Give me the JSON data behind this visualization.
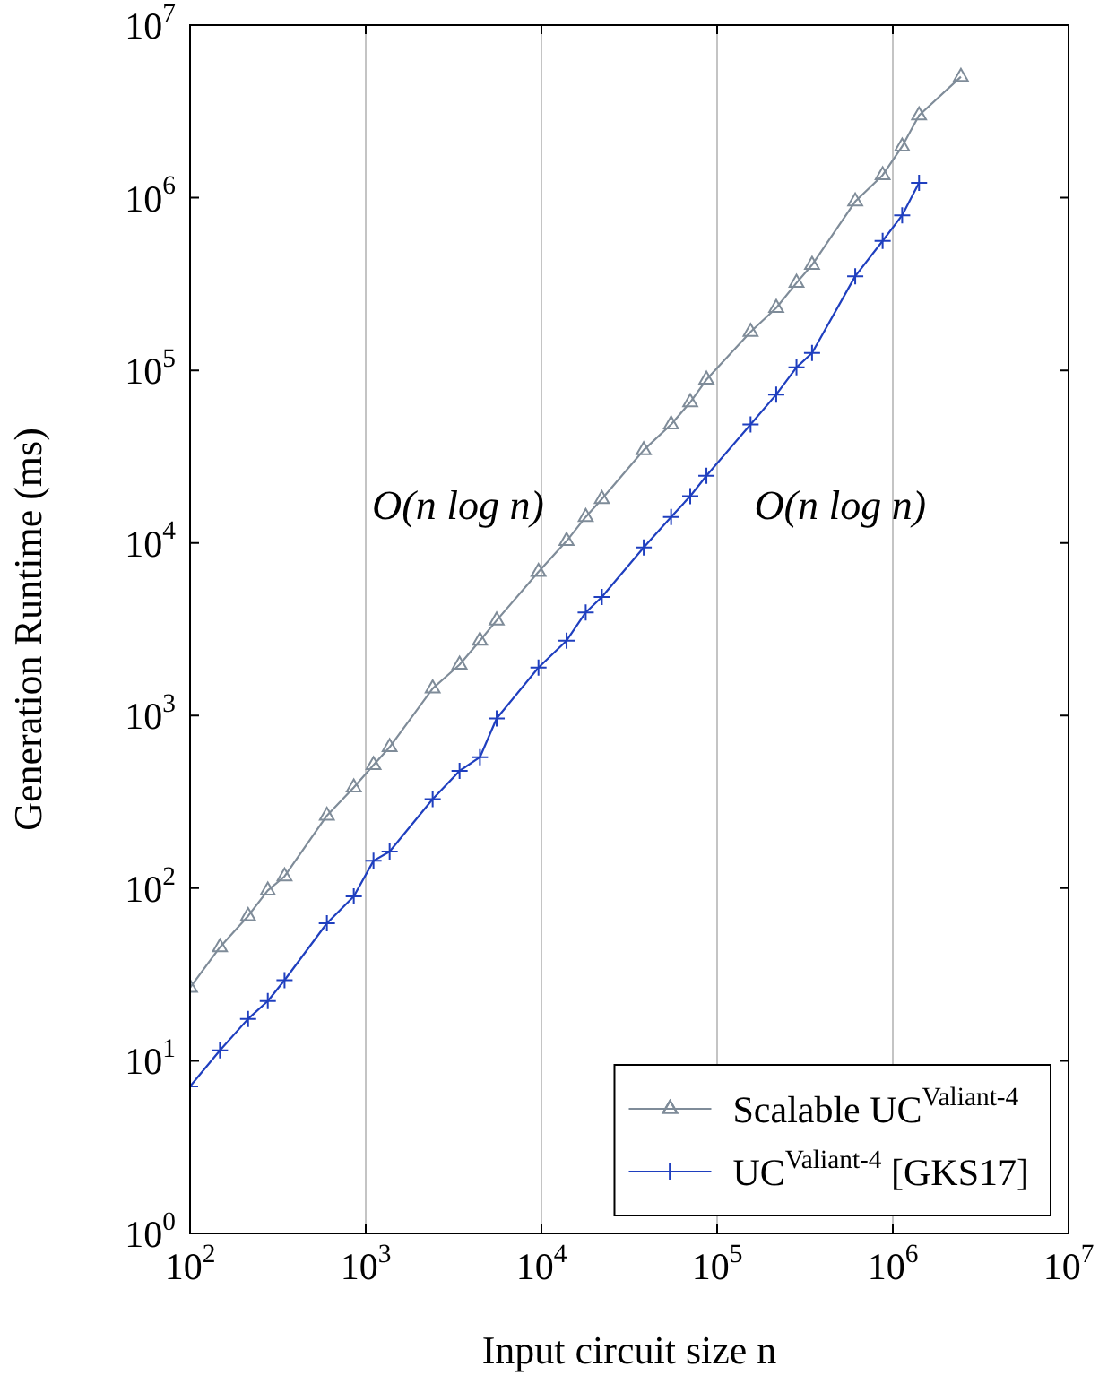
{
  "chart_data": {
    "type": "line",
    "xlabel": "Input circuit size n",
    "ylabel": "Generation Runtime (ms)",
    "log": "xy",
    "xlim": [
      100,
      10000000
    ],
    "ylim": [
      1,
      10000000
    ],
    "xticks": [
      {
        "value": 100,
        "label": "10$^{2}$"
      },
      {
        "value": 1000,
        "label": "10$^{3}$"
      },
      {
        "value": 10000,
        "label": "10$^{4}$"
      },
      {
        "value": 100000,
        "label": "10$^{5}$"
      },
      {
        "value": 1000000,
        "label": "10$^{6}$"
      },
      {
        "value": 10000000,
        "label": "10$^{7}$"
      }
    ],
    "yticks": [
      {
        "value": 1,
        "label": "10$^{0}$"
      },
      {
        "value": 10,
        "label": "10$^{1}$"
      },
      {
        "value": 100,
        "label": "10$^{2}$"
      },
      {
        "value": 1000,
        "label": "10$^{3}$"
      },
      {
        "value": 10000,
        "label": "10$^{4}$"
      },
      {
        "value": 100000,
        "label": "10$^{5}$"
      },
      {
        "value": 1000000,
        "label": "10$^{6}$"
      },
      {
        "value": 10000000,
        "label": "10$^{7}$"
      }
    ],
    "grid": "x",
    "legend": "bottom right",
    "line_style": "solid",
    "annotations": [
      "O(n log n)",
      "O(n log n)"
    ],
    "series": [
      {
        "name": "Scalable UC$^{Valiant-4}$",
        "color": "#7f8c99",
        "marker": "triangle",
        "x": [
          100,
          148,
          214,
          277,
          345,
          601,
          855,
          1107,
          1368,
          2404,
          3420,
          4467,
          5560,
          9620,
          13900,
          17870,
          22080,
          38200,
          54700,
          70300,
          86900,
          155000,
          217000,
          283000,
          347000,
          611000,
          875000,
          1130000,
          1410000,
          2440000
        ],
        "values": [
          26.5,
          45.5,
          69,
          97,
          117,
          263,
          383,
          517,
          656,
          1435,
          1972,
          2717,
          3557,
          6790,
          10260,
          14150,
          17950,
          34500,
          48600,
          65300,
          88300,
          167000,
          230000,
          321000,
          408000,
          951000,
          1350000,
          1980000,
          3000000,
          5020000
        ]
      },
      {
        "name": "UC$^{Valiant-4}$ [GKS17]",
        "color": "#1f3fbf",
        "marker": "cross",
        "x": [
          100,
          148,
          214,
          277,
          345,
          601,
          855,
          1107,
          1368,
          2404,
          3420,
          4467,
          5560,
          9620,
          13900,
          17870,
          22080,
          38200,
          54700,
          70300,
          86900,
          155000,
          217000,
          283000,
          347000,
          611000,
          875000,
          1130000,
          1410000
        ],
        "values": [
          7.1,
          11.5,
          17.5,
          22.2,
          29.3,
          62.6,
          89.6,
          144,
          163,
          328,
          478,
          574,
          962,
          1897,
          2717,
          3960,
          4860,
          9420,
          14150,
          18670,
          24500,
          48600,
          72400,
          104000,
          126000,
          351000,
          562000,
          791000,
          1220000
        ]
      }
    ]
  }
}
